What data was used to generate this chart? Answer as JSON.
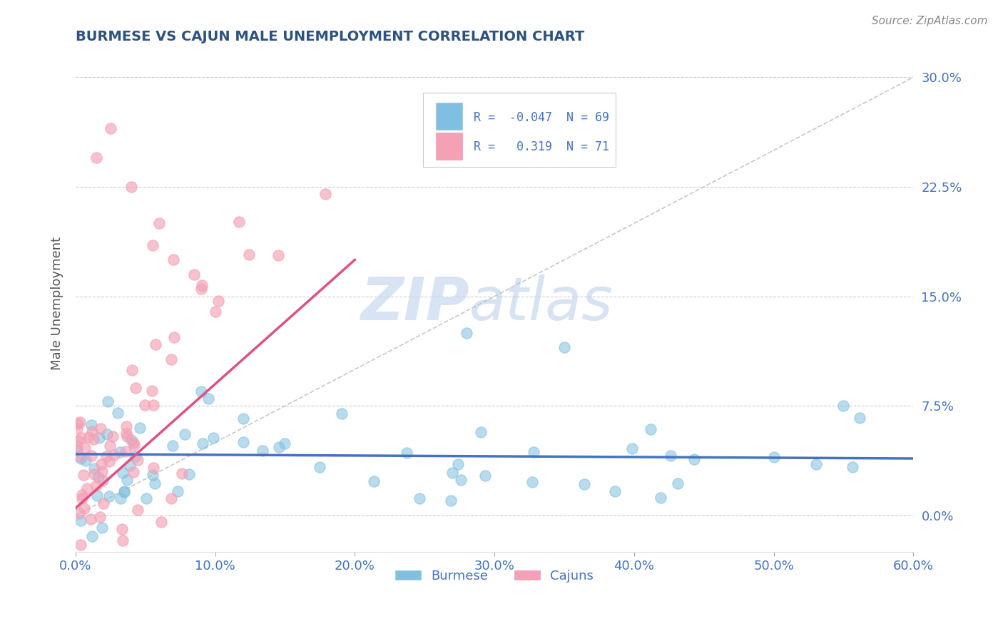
{
  "title": "BURMESE VS CAJUN MALE UNEMPLOYMENT CORRELATION CHART",
  "source": "Source: ZipAtlas.com",
  "ylabel": "Male Unemployment",
  "xlim": [
    0.0,
    0.6
  ],
  "ylim": [
    -0.025,
    0.315
  ],
  "yticks": [
    0.0,
    0.075,
    0.15,
    0.225,
    0.3
  ],
  "ytick_labels": [
    "0.0%",
    "7.5%",
    "15.0%",
    "22.5%",
    "30.0%"
  ],
  "xticks": [
    0.0,
    0.1,
    0.2,
    0.3,
    0.4,
    0.5,
    0.6
  ],
  "xtick_labels": [
    "0.0%",
    "10.0%",
    "20.0%",
    "30.0%",
    "40.0%",
    "50.0%",
    "60.0%"
  ],
  "burmese_color": "#7fbfdf",
  "cajun_color": "#f4a0b5",
  "burmese_R": -0.047,
  "burmese_N": 69,
  "cajun_R": 0.319,
  "cajun_N": 71,
  "title_color": "#2c5282",
  "axis_color": "#4472c4",
  "background_color": "#ffffff",
  "grid_color": "#cccccc",
  "watermark_zip": "ZIP",
  "watermark_atlas": "atlas",
  "diagonal_line_color": "#c8c8c8",
  "burmese_line_color": "#4472c4",
  "cajun_line_color": "#e05080"
}
